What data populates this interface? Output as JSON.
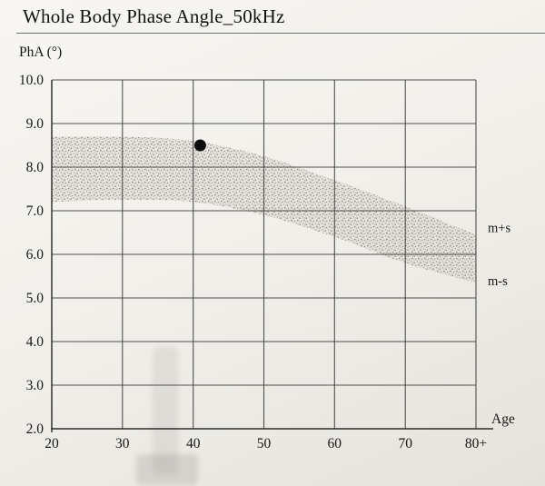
{
  "chart_data": {
    "type": "area",
    "title": "Whole Body Phase Angle_50kHz",
    "ylabel": "PhA (°)",
    "xlabel": "Age",
    "xlim": [
      20,
      80
    ],
    "ylim": [
      2,
      10
    ],
    "grid": true,
    "x": [
      20,
      30,
      40,
      50,
      60,
      70,
      80
    ],
    "x_tick_labels": [
      "20",
      "30",
      "40",
      "50",
      "60",
      "70",
      "80+"
    ],
    "y_ticks": [
      10,
      9,
      8,
      7,
      6,
      5,
      4,
      3,
      2
    ],
    "y_tick_labels": [
      "10.0",
      "9.0",
      "8.0",
      "7.0",
      "6.0",
      "5.0",
      "4.0",
      "3.0",
      "2.0"
    ],
    "band_labels": {
      "upper": "m+s",
      "lower": "m-s"
    },
    "series": [
      {
        "name": "m+s",
        "values": [
          8.7,
          8.7,
          8.6,
          8.25,
          7.7,
          7.1,
          6.45
        ]
      },
      {
        "name": "m-s",
        "values": [
          7.2,
          7.25,
          7.2,
          6.9,
          6.4,
          5.8,
          5.35
        ]
      }
    ],
    "point": {
      "x": 41,
      "y": 8.5
    }
  }
}
